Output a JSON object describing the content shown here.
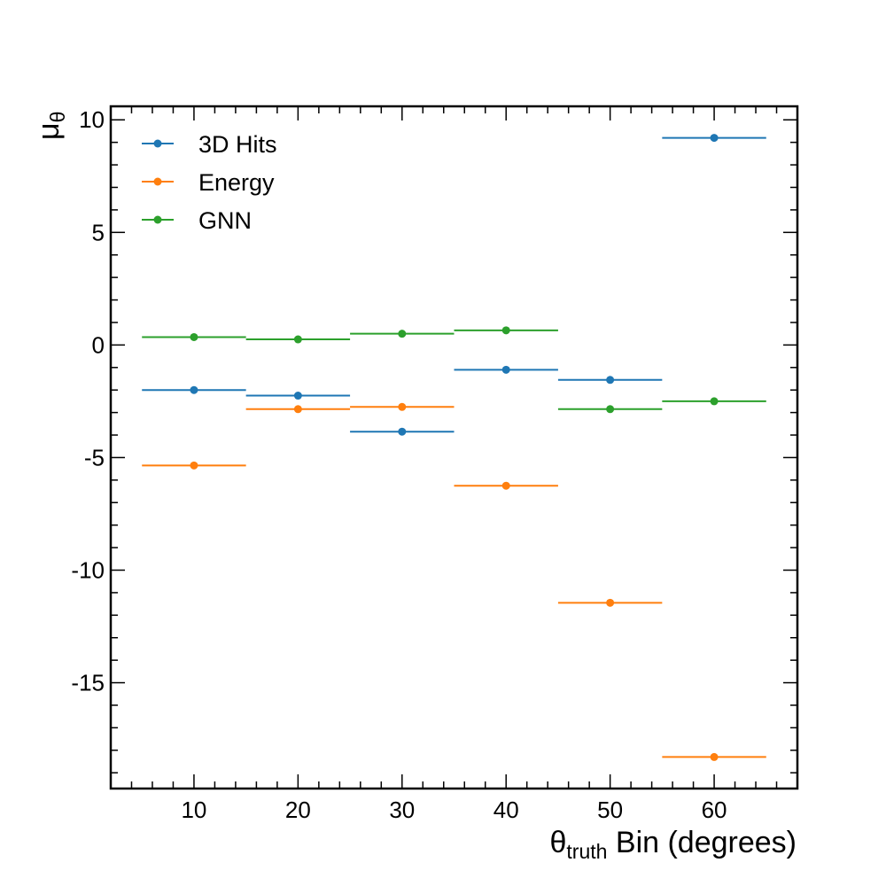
{
  "chart_data": {
    "type": "scatter",
    "xlabel": {
      "main": "θ",
      "sub": "truth",
      "rest": " Bin (degrees)"
    },
    "ylabel": {
      "main": "μ",
      "sub": "θ"
    },
    "xlim": [
      2,
      68
    ],
    "ylim": [
      -19.7,
      10.6
    ],
    "xticks": [
      10,
      20,
      30,
      40,
      50,
      60
    ],
    "xtick_labels": [
      "10",
      "20",
      "30",
      "40",
      "50",
      "60"
    ],
    "yticks": [
      10,
      5,
      0,
      -5,
      -10,
      -15
    ],
    "ytick_labels": [
      "10",
      "5",
      "0",
      "-5",
      "-10",
      "-15"
    ],
    "bin_half_width": 5,
    "legend_position": "top-left",
    "grid": false,
    "series": [
      {
        "name": "3D Hits",
        "color": "#1f77b4",
        "x": [
          10,
          20,
          30,
          40,
          50,
          60
        ],
        "values": [
          -2.0,
          -2.25,
          -3.85,
          -1.1,
          -1.55,
          9.2
        ]
      },
      {
        "name": "Energy",
        "color": "#ff7f0e",
        "x": [
          10,
          20,
          30,
          40,
          50,
          60
        ],
        "values": [
          -5.35,
          -2.85,
          -2.75,
          -6.25,
          -11.45,
          -18.3
        ]
      },
      {
        "name": "GNN",
        "color": "#2ca02c",
        "x": [
          10,
          20,
          30,
          40,
          50,
          60
        ],
        "values": [
          0.35,
          0.25,
          0.5,
          0.65,
          -2.85,
          -2.5
        ]
      }
    ]
  }
}
